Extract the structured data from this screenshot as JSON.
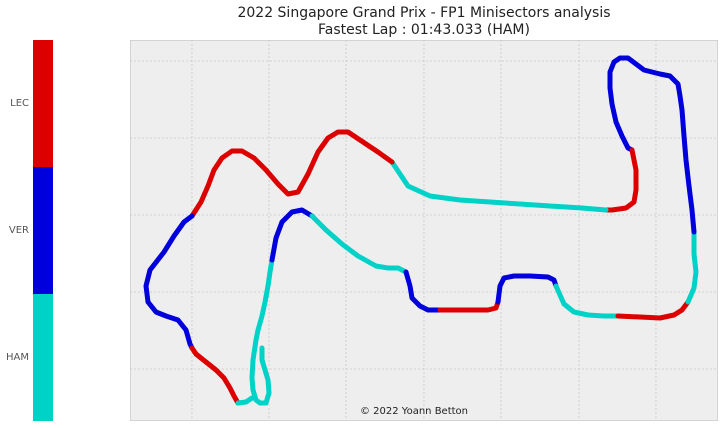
{
  "chart_data": {
    "type": "line",
    "title": "2022 Singapore Grand Prix - FP1 Minisectors analysis",
    "subtitle": "Fastest Lap : 01:43.033 (HAM)",
    "credit": "© 2022 Yoann Betton",
    "xlabel": "",
    "ylabel": "",
    "grid": true,
    "drivers": [
      {
        "name": "LEC",
        "color": "#dd0000"
      },
      {
        "name": "VER",
        "color": "#0000dd"
      },
      {
        "name": "HAM",
        "color": "#00d2c8"
      }
    ],
    "xlim": [
      0,
      588
    ],
    "ylim": [
      0,
      381
    ],
    "segments": [
      {
        "driver": "HAM",
        "points": [
          [
            132,
            308
          ],
          [
            132,
            320
          ],
          [
            138,
            340
          ],
          [
            139,
            353
          ],
          [
            136,
            363
          ],
          [
            130,
            363
          ],
          [
            126,
            360
          ],
          [
            123,
            350
          ],
          [
            122,
            338
          ],
          [
            123,
            320
          ],
          [
            126,
            300
          ],
          [
            128,
            290
          ],
          [
            132,
            276
          ],
          [
            135,
            262
          ],
          [
            138,
            246
          ],
          [
            140,
            232
          ],
          [
            142,
            220
          ]
        ]
      },
      {
        "driver": "VER",
        "points": [
          [
            142,
            220
          ],
          [
            146,
            198
          ],
          [
            152,
            182
          ],
          [
            162,
            172
          ],
          [
            172,
            170
          ],
          [
            182,
            176
          ]
        ]
      },
      {
        "driver": "HAM",
        "points": [
          [
            182,
            176
          ],
          [
            196,
            190
          ],
          [
            212,
            204
          ],
          [
            228,
            216
          ],
          [
            246,
            226
          ],
          [
            258,
            228
          ],
          [
            268,
            228
          ],
          [
            276,
            232
          ]
        ]
      },
      {
        "driver": "VER",
        "points": [
          [
            276,
            232
          ],
          [
            280,
            246
          ],
          [
            282,
            258
          ],
          [
            290,
            266
          ],
          [
            298,
            270
          ],
          [
            310,
            270
          ]
        ]
      },
      {
        "driver": "LEC",
        "points": [
          [
            310,
            270
          ],
          [
            330,
            270
          ],
          [
            345,
            270
          ],
          [
            358,
            270
          ],
          [
            366,
            268
          ],
          [
            368,
            262
          ]
        ]
      },
      {
        "driver": "VER",
        "points": [
          [
            368,
            262
          ],
          [
            370,
            246
          ],
          [
            374,
            238
          ],
          [
            384,
            236
          ],
          [
            400,
            236
          ],
          [
            418,
            237
          ],
          [
            424,
            240
          ],
          [
            426,
            246
          ]
        ]
      },
      {
        "driver": "HAM",
        "points": [
          [
            426,
            246
          ],
          [
            434,
            264
          ],
          [
            444,
            272
          ],
          [
            458,
            275
          ],
          [
            474,
            276
          ],
          [
            488,
            276
          ]
        ]
      },
      {
        "driver": "LEC",
        "points": [
          [
            488,
            276
          ],
          [
            510,
            277
          ],
          [
            530,
            278
          ],
          [
            544,
            275
          ],
          [
            552,
            270
          ],
          [
            558,
            262
          ]
        ]
      },
      {
        "driver": "HAM",
        "points": [
          [
            558,
            262
          ],
          [
            564,
            248
          ],
          [
            566,
            232
          ],
          [
            564,
            214
          ],
          [
            564,
            192
          ]
        ]
      },
      {
        "driver": "VER",
        "points": [
          [
            564,
            192
          ],
          [
            562,
            170
          ],
          [
            559,
            146
          ],
          [
            556,
            120
          ],
          [
            554,
            96
          ],
          [
            552,
            70
          ],
          [
            550,
            56
          ],
          [
            548,
            44
          ],
          [
            540,
            36
          ],
          [
            530,
            34
          ],
          [
            522,
            32
          ],
          [
            514,
            30
          ],
          [
            506,
            24
          ],
          [
            498,
            18
          ],
          [
            490,
            18
          ],
          [
            484,
            22
          ],
          [
            480,
            32
          ],
          [
            480,
            48
          ],
          [
            482,
            64
          ],
          [
            486,
            82
          ],
          [
            492,
            96
          ],
          [
            498,
            108
          ],
          [
            502,
            110
          ]
        ]
      },
      {
        "driver": "LEC",
        "points": [
          [
            502,
            110
          ],
          [
            506,
            130
          ],
          [
            506,
            150
          ],
          [
            504,
            162
          ],
          [
            496,
            168
          ],
          [
            482,
            170
          ],
          [
            476,
            170
          ]
        ]
      },
      {
        "driver": "HAM",
        "points": [
          [
            476,
            170
          ],
          [
            452,
            168
          ],
          [
            420,
            166
          ],
          [
            390,
            164
          ],
          [
            360,
            162
          ],
          [
            330,
            160
          ],
          [
            300,
            156
          ],
          [
            278,
            146
          ],
          [
            262,
            122
          ]
        ]
      },
      {
        "driver": "LEC",
        "points": [
          [
            262,
            122
          ],
          [
            248,
            112
          ],
          [
            230,
            100
          ],
          [
            218,
            92
          ],
          [
            208,
            92
          ],
          [
            198,
            98
          ],
          [
            188,
            112
          ],
          [
            178,
            134
          ],
          [
            168,
            152
          ],
          [
            158,
            154
          ],
          [
            148,
            144
          ],
          [
            136,
            130
          ],
          [
            124,
            118
          ],
          [
            112,
            111
          ],
          [
            102,
            111
          ],
          [
            92,
            118
          ],
          [
            84,
            130
          ],
          [
            78,
            146
          ],
          [
            71,
            162
          ],
          [
            62,
            176
          ]
        ]
      },
      {
        "driver": "VER",
        "points": [
          [
            62,
            176
          ],
          [
            54,
            182
          ],
          [
            44,
            196
          ],
          [
            34,
            212
          ],
          [
            20,
            230
          ],
          [
            16,
            246
          ],
          [
            18,
            262
          ],
          [
            26,
            272
          ],
          [
            36,
            276
          ],
          [
            48,
            280
          ],
          [
            56,
            290
          ],
          [
            60,
            304
          ],
          [
            62,
            308
          ]
        ]
      },
      {
        "driver": "LEC",
        "points": [
          [
            62,
            308
          ],
          [
            66,
            314
          ],
          [
            76,
            322
          ],
          [
            86,
            330
          ],
          [
            94,
            338
          ],
          [
            100,
            348
          ],
          [
            104,
            356
          ],
          [
            108,
            363
          ]
        ]
      },
      {
        "driver": "HAM",
        "points": [
          [
            108,
            363
          ],
          [
            116,
            362
          ],
          [
            122,
            358
          ]
        ]
      }
    ]
  }
}
